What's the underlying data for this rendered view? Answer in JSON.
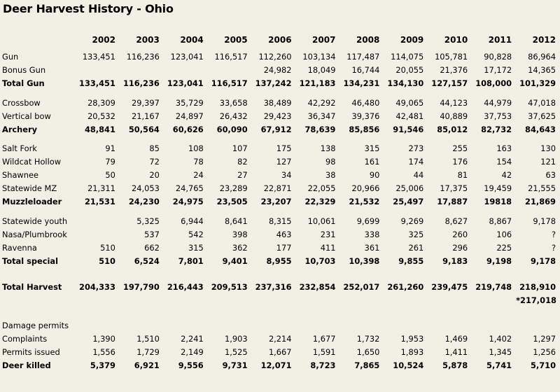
{
  "title": "Deer Harvest History - Ohio",
  "years": [
    "2002",
    "2003",
    "2004",
    "2005",
    "2006",
    "2007",
    "2008",
    "2009",
    "2010",
    "2011",
    "2012"
  ],
  "sections": [
    [
      {
        "label": "Gun",
        "bold": false,
        "values": [
          "133,451",
          "116,236",
          "123,041",
          "116,517",
          "112,260",
          "103,134",
          "117,487",
          "114,075",
          "105,781",
          "90,828",
          "86,964"
        ]
      },
      {
        "label": "Bonus Gun",
        "bold": false,
        "values": [
          "",
          "",
          "",
          "",
          "24,982",
          "18,049",
          "16,744",
          "20,055",
          "21,376",
          "17,172",
          "14,365"
        ]
      },
      {
        "label": "Total Gun",
        "bold": true,
        "values": [
          "133,451",
          "116,236",
          "123,041",
          "116,517",
          "137,242",
          "121,183",
          "134,231",
          "134,130",
          "127,157",
          "108,000",
          "101,329"
        ]
      }
    ],
    [
      {
        "label": "Crossbow",
        "bold": false,
        "values": [
          "28,309",
          "29,397",
          "35,729",
          "33,658",
          "38,489",
          "42,292",
          "46,480",
          "49,065",
          "44,123",
          "44,979",
          "47,018"
        ]
      },
      {
        "label": "Vertical bow",
        "bold": false,
        "values": [
          "20,532",
          "21,167",
          "24,897",
          "26,432",
          "29,423",
          "36,347",
          "39,376",
          "42,481",
          "40,889",
          "37,753",
          "37,625"
        ]
      },
      {
        "label": "Archery",
        "bold": true,
        "values": [
          "48,841",
          "50,564",
          "60,626",
          "60,090",
          "67,912",
          "78,639",
          "85,856",
          "91,546",
          "85,012",
          "82,732",
          "84,643"
        ]
      }
    ],
    [
      {
        "label": "Salt Fork",
        "bold": false,
        "values": [
          "91",
          "85",
          "108",
          "107",
          "175",
          "138",
          "315",
          "273",
          "255",
          "163",
          "130"
        ]
      },
      {
        "label": "Wildcat Hollow",
        "bold": false,
        "values": [
          "79",
          "72",
          "78",
          "82",
          "127",
          "98",
          "161",
          "174",
          "176",
          "154",
          "121"
        ]
      },
      {
        "label": "Shawnee",
        "bold": false,
        "values": [
          "50",
          "20",
          "24",
          "27",
          "34",
          "38",
          "90",
          "44",
          "81",
          "42",
          "63"
        ]
      },
      {
        "label": "Statewide MZ",
        "bold": false,
        "values": [
          "21,311",
          "24,053",
          "24,765",
          "23,289",
          "22,871",
          "22,055",
          "20,966",
          "25,006",
          "17,375",
          "19,459",
          "21,555"
        ]
      },
      {
        "label": "Muzzleloader",
        "bold": true,
        "values": [
          "21,531",
          "24,230",
          "24,975",
          "23,505",
          "23,207",
          "22,329",
          "21,532",
          "25,497",
          "17,887",
          "19818",
          "21,869"
        ]
      }
    ],
    [
      {
        "label": "Statewide youth",
        "bold": false,
        "values": [
          "",
          "5,325",
          "6,944",
          "8,641",
          "8,315",
          "10,061",
          "9,699",
          "9,269",
          "8,627",
          "8,867",
          "9,178"
        ]
      },
      {
        "label": "Nasa/Plumbrook",
        "bold": false,
        "values": [
          "",
          "537",
          "542",
          "398",
          "463",
          "231",
          "338",
          "325",
          "260",
          "106",
          "?"
        ]
      },
      {
        "label": "Ravenna",
        "bold": false,
        "values": [
          "510",
          "662",
          "315",
          "362",
          "177",
          "411",
          "361",
          "261",
          "296",
          "225",
          "?"
        ]
      },
      {
        "label": "Total special",
        "bold": true,
        "values": [
          "510",
          "6,524",
          "7,801",
          "9,401",
          "8,955",
          "10,703",
          "10,398",
          "9,855",
          "9,183",
          "9,198",
          "9,178"
        ]
      }
    ],
    [
      {
        "label": "Total Harvest",
        "bold": true,
        "values": [
          "204,333",
          "197,790",
          "216,443",
          "209,513",
          "237,316",
          "232,854",
          "252,017",
          "261,260",
          "239,475",
          "219,748",
          "218,910"
        ]
      },
      {
        "label": "",
        "bold": true,
        "values": [
          "",
          "",
          "",
          "",
          "",
          "",
          "",
          "",
          "",
          "",
          "*217,018"
        ]
      }
    ],
    [
      {
        "label": "Damage permits",
        "bold": false,
        "values": [
          "",
          "",
          "",
          "",
          "",
          "",
          "",
          "",
          "",
          "",
          ""
        ]
      },
      {
        "label": "Complaints",
        "bold": false,
        "values": [
          "1,390",
          "1,510",
          "2,241",
          "1,903",
          "2,214",
          "1,677",
          "1,732",
          "1,953",
          "1,469",
          "1,402",
          "1,297"
        ]
      },
      {
        "label": "Permits issued",
        "bold": false,
        "values": [
          "1,556",
          "1,729",
          "2,149",
          "1,525",
          "1,667",
          "1,591",
          "1,650",
          "1,893",
          "1,411",
          "1,345",
          "1,256"
        ]
      },
      {
        "label": "Deer killed",
        "bold": true,
        "values": [
          "5,379",
          "6,921",
          "9,556",
          "9,731",
          "12,071",
          "8,723",
          "7,865",
          "10,524",
          "5,878",
          "5,741",
          "5,710"
        ]
      }
    ]
  ]
}
